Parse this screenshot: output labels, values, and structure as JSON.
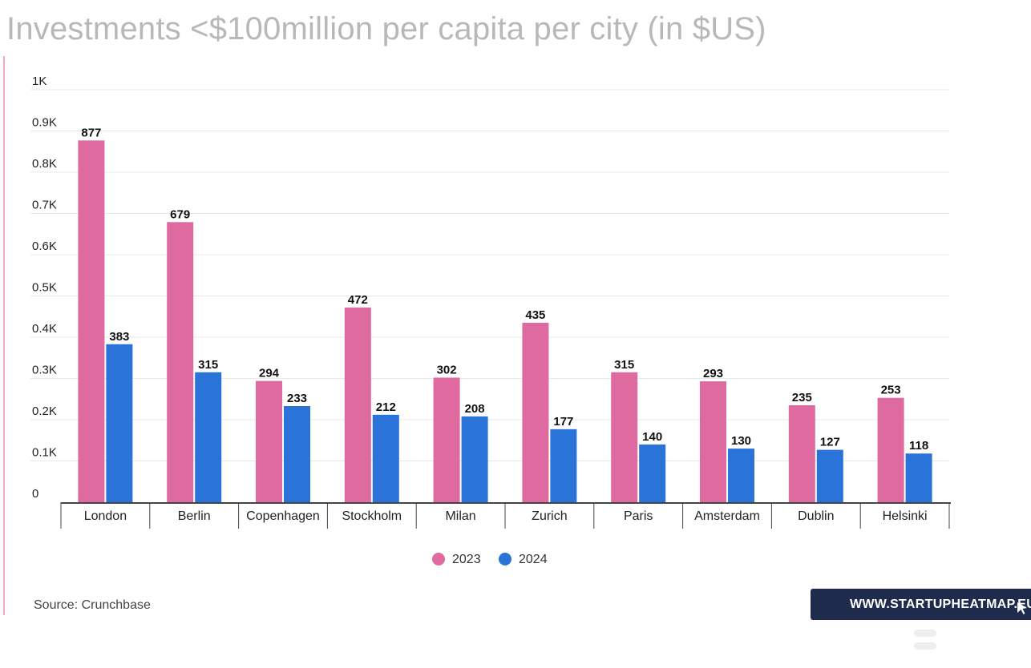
{
  "title": "Investments <$100million per capita per city (in $US)",
  "source": "Source: Crunchbase",
  "brand": {
    "label": "WWW.STARTUPHEATMAP.EU",
    "icon": "cursor-arrow-icon"
  },
  "colors": {
    "2023": "#de6aa0",
    "2024": "#2a74d9",
    "title": "#b8b8b8",
    "brand_bg": "#1f2b4d"
  },
  "chart_data": {
    "type": "bar",
    "title": "Investments <$100million per capita per city (in $US)",
    "xlabel": "",
    "ylabel": "",
    "ylim": [
      0,
      1000
    ],
    "y_ticks": [
      {
        "value": 0,
        "label": "0"
      },
      {
        "value": 100,
        "label": "0.1K"
      },
      {
        "value": 200,
        "label": "0.2K"
      },
      {
        "value": 300,
        "label": "0.3K"
      },
      {
        "value": 400,
        "label": "0.4K"
      },
      {
        "value": 500,
        "label": "0.5K"
      },
      {
        "value": 600,
        "label": "0.6K"
      },
      {
        "value": 700,
        "label": "0.7K"
      },
      {
        "value": 800,
        "label": "0.8K"
      },
      {
        "value": 900,
        "label": "0.9K"
      },
      {
        "value": 1000,
        "label": "1K"
      }
    ],
    "grid": true,
    "legend_position": "bottom-center",
    "categories": [
      "London",
      "Berlin",
      "Copenhagen",
      "Stockholm",
      "Milan",
      "Zurich",
      "Paris",
      "Amsterdam",
      "Dublin",
      "Helsinki"
    ],
    "series": [
      {
        "name": "2023",
        "color": "#de6aa0",
        "values": [
          877,
          679,
          294,
          472,
          302,
          435,
          315,
          293,
          235,
          253
        ]
      },
      {
        "name": "2024",
        "color": "#2a74d9",
        "values": [
          383,
          315,
          233,
          212,
          208,
          177,
          140,
          130,
          127,
          118
        ]
      }
    ]
  }
}
